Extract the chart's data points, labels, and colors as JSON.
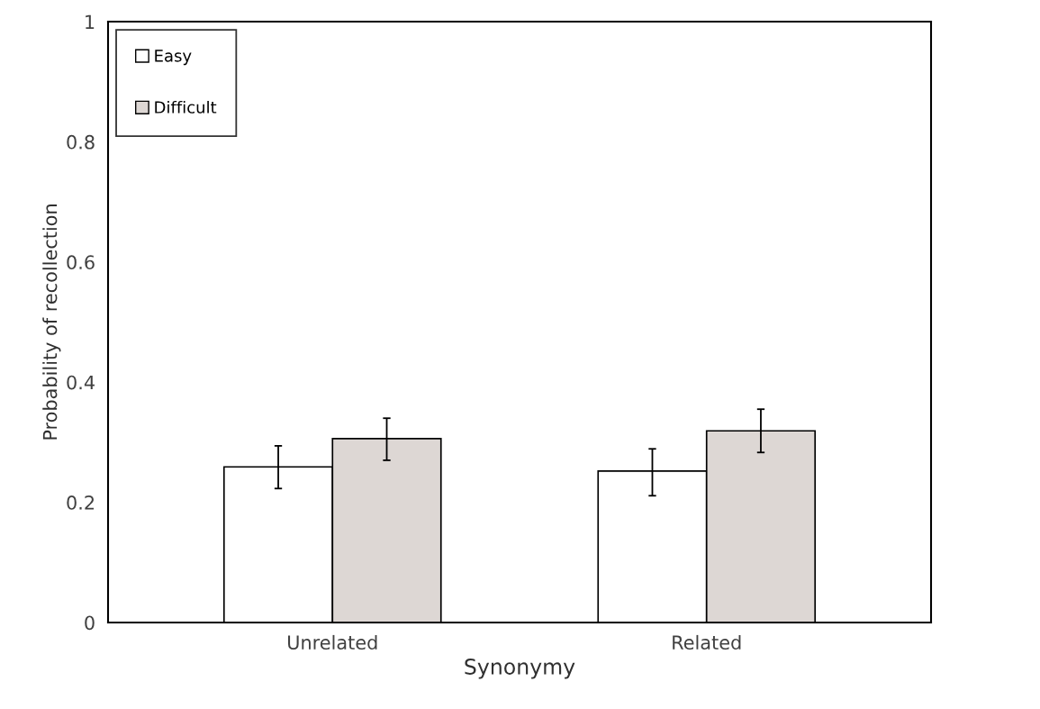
{
  "chart_data": {
    "type": "bar",
    "xlabel": "Synonymy",
    "ylabel": "Probability of recollection",
    "categories": [
      "Unrelated",
      "Related"
    ],
    "series": [
      {
        "name": "Easy",
        "color": "#ffffff",
        "values": [
          0.259,
          0.252
        ],
        "errors": [
          [
            0.223,
            0.294
          ],
          [
            0.211,
            0.289
          ]
        ]
      },
      {
        "name": "Difficult",
        "color": "#ddd7d4",
        "values": [
          0.306,
          0.319
        ],
        "errors": [
          [
            0.27,
            0.34
          ],
          [
            0.283,
            0.355
          ]
        ]
      }
    ],
    "ylim": [
      0,
      1
    ],
    "yticks": [
      0,
      0.2,
      0.4,
      0.6,
      0.8,
      1
    ],
    "grid": false,
    "legend": "top left"
  }
}
